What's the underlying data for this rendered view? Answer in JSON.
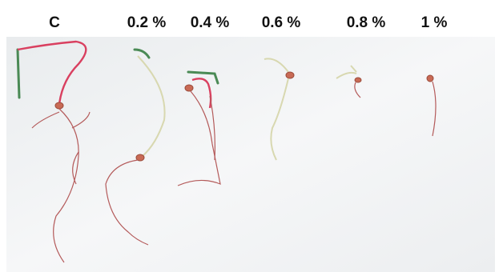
{
  "labels": [
    "C",
    "0.2 %",
    "0.4 %",
    "0.6 %",
    "0.8 %",
    "1 %"
  ]
}
